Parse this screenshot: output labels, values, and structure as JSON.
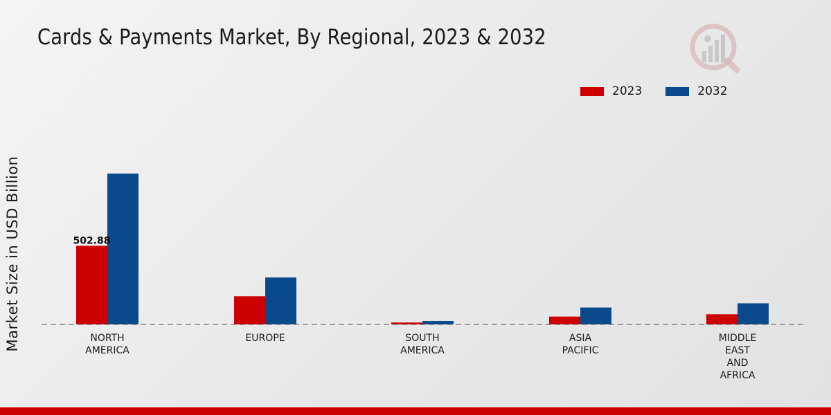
{
  "title": "Cards & Payments Market, By Regional, 2023 & 2032",
  "colors": {
    "series_2023": "#cc0000",
    "series_2032": "#0a4a8c",
    "footer": "#cc0000"
  },
  "logo_icon": "market-research-logo-icon",
  "legend": [
    {
      "label": "2023",
      "color": "#cc0000"
    },
    {
      "label": "2032",
      "color": "#0a4a8c"
    }
  ],
  "chart_data": {
    "type": "bar",
    "title": "Cards & Payments Market, By Regional, 2023 & 2032",
    "ylabel": "Market Size in USD Billion",
    "xlabel": "",
    "categories": [
      [
        "NORTH",
        "AMERICA"
      ],
      [
        "EUROPE"
      ],
      [
        "SOUTH",
        "AMERICA"
      ],
      [
        "ASIA",
        "PACIFIC"
      ],
      [
        "MIDDLE",
        "EAST",
        "AND",
        "AFRICA"
      ]
    ],
    "series": [
      {
        "name": "2023",
        "color": "#cc0000",
        "values": [
          502.88,
          180,
          12,
          50,
          65
        ]
      },
      {
        "name": "2032",
        "color": "#0a4a8c",
        "values": [
          965,
          300,
          22,
          108,
          135
        ]
      }
    ],
    "data_labels": [
      {
        "series": 0,
        "index": 0,
        "text": "502.88"
      }
    ],
    "ylim": [
      0,
      1500
    ],
    "grid": false,
    "legend_position": "top-right"
  }
}
